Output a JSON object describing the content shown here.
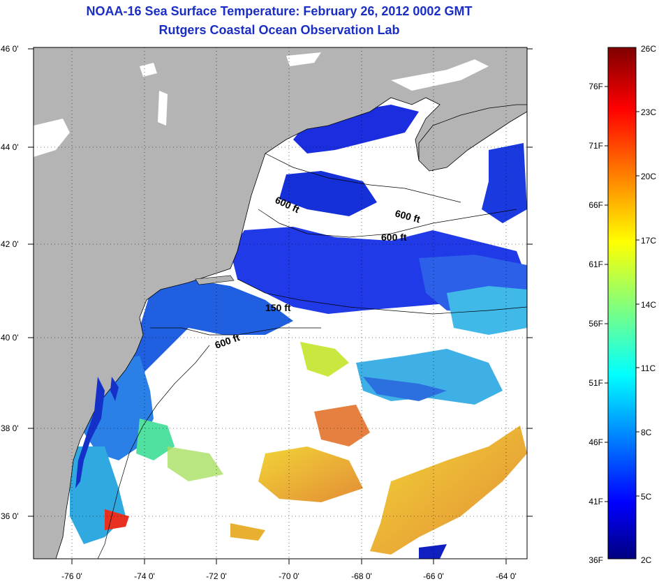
{
  "title": "NOAA-16 Sea Surface Temperature:  February 26, 2012 0002 GMT",
  "subtitle": "Rutgers Coastal Ocean Observation Lab",
  "lat_labels": [
    "46 0'",
    "44 0'",
    "42 0'",
    "40 0'",
    "38 0'",
    "36 0'"
  ],
  "lon_labels": [
    "-76 0'",
    "-74 0'",
    "-72 0'",
    "-70 0'",
    "-68 0'",
    "-66 0'",
    "-64 0'"
  ],
  "contour_labels": [
    "600 ft",
    "600 ft",
    "600 ft",
    "150 ft",
    "600 ft"
  ],
  "colorbar": {
    "celsius": [
      "26C",
      "23C",
      "20C",
      "17C",
      "14C",
      "11C",
      "8C",
      "5C",
      "2C"
    ],
    "fahrenheit": [
      "76F",
      "71F",
      "66F",
      "61F",
      "56F",
      "51F",
      "46F",
      "41F",
      "36F"
    ],
    "min_c": 2,
    "max_c": 26
  },
  "colors": {
    "title": "#1a2ec4",
    "land": "#b4b4b4",
    "ocean_no_data": "#ffffff",
    "colormap": "jet"
  }
}
